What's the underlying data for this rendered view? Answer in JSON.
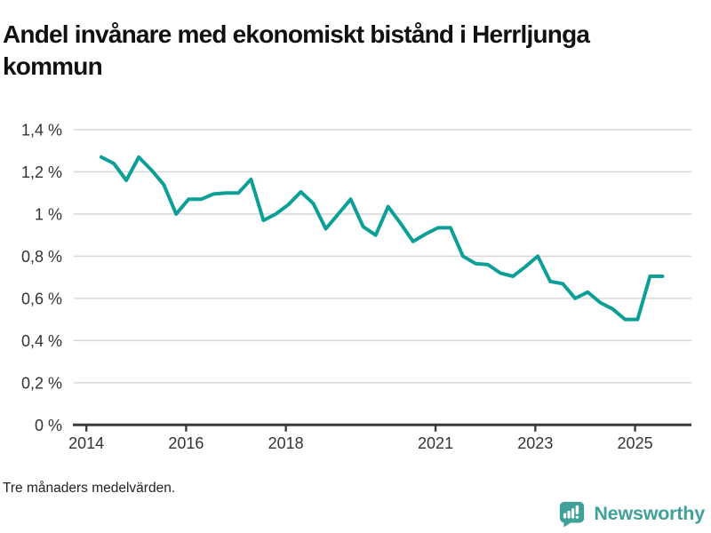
{
  "title": "Andel invånare med ekonomiskt bistånd i Herrljunga kommun",
  "footer": {
    "note": "Tre månaders medelvärden."
  },
  "branding": {
    "name": "Newsworthy",
    "icon": "bar-chart-speech-bubble-icon",
    "brand_color": "#3fa19a"
  },
  "chart_data": {
    "type": "line",
    "title": "Andel invånare med ekonomiskt bistånd i Herrljunga kommun",
    "series_name": "Andel invånare med ekonomiskt bistånd",
    "unit": "%",
    "note": "Tre månaders medelvärden.",
    "grid": "horizontal",
    "legend": "none",
    "line_color": "#0c9f97",
    "grid_color": "#d9d9d9",
    "axis_color": "#3c3c3c",
    "label_color": "#333333",
    "ylim": [
      0,
      1.4
    ],
    "xlim": [
      2013.73,
      2026.13
    ],
    "yticks": [
      0,
      0.2,
      0.4,
      0.6,
      0.8,
      1.0,
      1.2,
      1.4
    ],
    "ytick_labels": [
      "0 %",
      "0,2 %",
      "0,4 %",
      "0,6 %",
      "0,8 %",
      "1 %",
      "1,2 %",
      "1,4 %"
    ],
    "xticks": [
      2014,
      2016,
      2018,
      2021,
      2023,
      2025
    ],
    "xtick_labels": [
      "2014",
      "2016",
      "2018",
      "2021",
      "2023",
      "2025"
    ],
    "x": [
      2014.3,
      2014.55,
      2014.8,
      2015.05,
      2015.3,
      2015.55,
      2015.8,
      2016.05,
      2016.3,
      2016.55,
      2016.8,
      2017.05,
      2017.3,
      2017.55,
      2017.8,
      2018.05,
      2018.3,
      2018.55,
      2018.8,
      2019.05,
      2019.3,
      2019.55,
      2019.8,
      2020.05,
      2020.3,
      2020.55,
      2020.8,
      2021.05,
      2021.3,
      2021.55,
      2021.8,
      2022.05,
      2022.3,
      2022.55,
      2022.8,
      2023.05,
      2023.3,
      2023.55,
      2023.8,
      2024.05,
      2024.3,
      2024.55,
      2024.8,
      2025.05,
      2025.3,
      2025.55
    ],
    "values": [
      1.27,
      1.24,
      1.16,
      1.27,
      1.21,
      1.14,
      1.0,
      1.07,
      1.07,
      1.095,
      1.1,
      1.1,
      1.165,
      0.97,
      1.0,
      1.045,
      1.105,
      1.05,
      0.93,
      1.0,
      1.07,
      0.94,
      0.9,
      1.035,
      0.955,
      0.87,
      0.905,
      0.935,
      0.935,
      0.8,
      0.765,
      0.76,
      0.72,
      0.705,
      0.75,
      0.8,
      0.68,
      0.67,
      0.6,
      0.63,
      0.58,
      0.55,
      0.5,
      0.5,
      0.705,
      0.705
    ]
  }
}
